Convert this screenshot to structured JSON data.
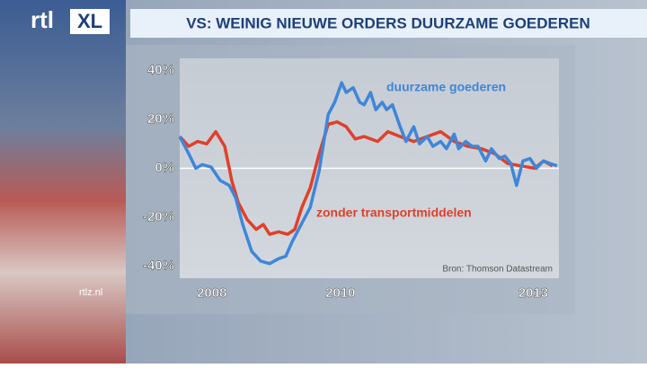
{
  "logo": {
    "rtl": "rtl",
    "xl": "XL"
  },
  "website": "rtlz.nl",
  "chart_data": {
    "type": "line",
    "title": "VS: WEINIG NIEUWE ORDERS DUURZAME GOEDEREN",
    "source": "Bron: Thomson Datastream",
    "xlim": [
      2007.5,
      2013.4
    ],
    "xticks": [
      2008,
      2010,
      2013
    ],
    "ylim": [
      -45,
      45
    ],
    "yticks": [
      {
        "value": 40,
        "label": "40%"
      },
      {
        "value": 20,
        "label": "20%"
      },
      {
        "value": 0,
        "label": "0%"
      },
      {
        "value": -20,
        "label": "-20%"
      },
      {
        "value": -40,
        "label": "-40%"
      }
    ],
    "grid": false,
    "zero_line": true,
    "series": [
      {
        "name": "zonder transportmiddelen",
        "color": "#e0402a",
        "x": [
          2007.5,
          2007.64,
          2007.78,
          2007.92,
          2008.06,
          2008.2,
          2008.31,
          2008.41,
          2008.55,
          2008.69,
          2008.8,
          2008.9,
          2009.04,
          2009.18,
          2009.29,
          2009.4,
          2009.53,
          2009.67,
          2009.81,
          2009.95,
          2010.09,
          2010.23,
          2010.37,
          2010.58,
          2010.74,
          2010.93,
          2011.14,
          2011.35,
          2011.56,
          2011.77,
          2011.98,
          2012.19,
          2012.4,
          2012.6,
          2012.81,
          2013.02,
          2013.16,
          2013.3
        ],
        "values": [
          13,
          9,
          11,
          10,
          15,
          9,
          -5,
          -14,
          -21,
          -25,
          -23,
          -27,
          -26,
          -27,
          -25,
          -16,
          -8,
          6,
          18,
          19,
          17,
          12,
          13,
          11,
          15,
          13,
          11,
          13,
          15,
          11,
          9,
          8,
          6,
          2,
          1,
          0,
          3,
          1
        ]
      },
      {
        "name": "duurzame goederen",
        "color": "#3f86d8",
        "x": [
          2007.5,
          2007.64,
          2007.75,
          2007.85,
          2007.99,
          2008.13,
          2008.27,
          2008.37,
          2008.48,
          2008.62,
          2008.76,
          2008.9,
          2009.04,
          2009.15,
          2009.25,
          2009.39,
          2009.53,
          2009.67,
          2009.81,
          2009.91,
          2010.02,
          2010.09,
          2010.2,
          2010.3,
          2010.37,
          2010.47,
          2010.55,
          2010.65,
          2010.72,
          2010.81,
          2010.93,
          2011.02,
          2011.14,
          2011.23,
          2011.35,
          2011.44,
          2011.56,
          2011.65,
          2011.77,
          2011.84,
          2011.95,
          2012.05,
          2012.14,
          2012.26,
          2012.35,
          2012.47,
          2012.56,
          2012.65,
          2012.74,
          2012.84,
          2012.95,
          2013.05,
          2013.16,
          2013.26,
          2013.37
        ],
        "values": [
          13,
          6,
          0,
          1.5,
          0.5,
          -5,
          -7,
          -12,
          -23,
          -34,
          -38,
          -39,
          -37,
          -36,
          -30,
          -23,
          -16,
          -1,
          22,
          27,
          35,
          31,
          33,
          27,
          26,
          31,
          24,
          27,
          24,
          26,
          17,
          11,
          17,
          10,
          13,
          9,
          11,
          8,
          14,
          8,
          11,
          9,
          9,
          3,
          8,
          4,
          5,
          2,
          -7,
          3,
          4,
          0,
          3,
          2,
          1
        ]
      }
    ]
  }
}
